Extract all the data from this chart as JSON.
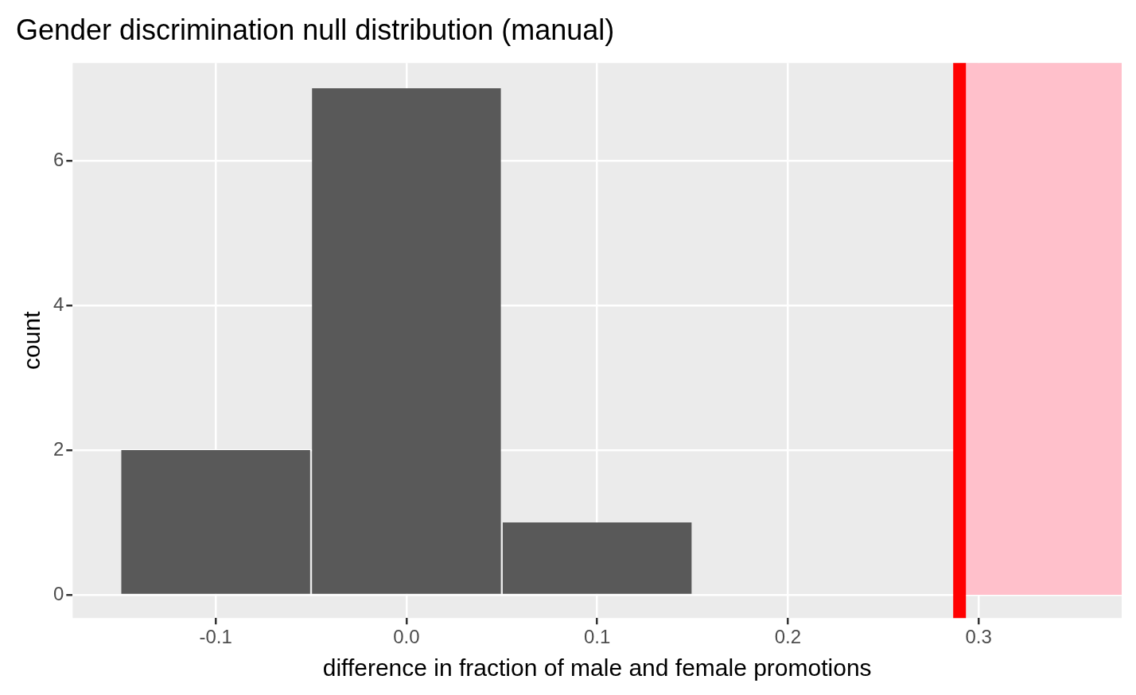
{
  "chart_data": {
    "type": "histogram",
    "title": "Gender discrimination null distribution (manual)",
    "xlabel": "difference in fraction of male and female promotions",
    "ylabel": "count",
    "bins": [
      -0.15,
      -0.05,
      0.05,
      0.15
    ],
    "values": [
      2,
      7,
      1
    ],
    "color": "#595959",
    "xlim": [
      -0.175,
      0.375
    ],
    "xticks": [
      {
        "value": -0.1,
        "label": "-0.1"
      },
      {
        "value": 0.0,
        "label": "0.0"
      },
      {
        "value": 0.1,
        "label": "0.1"
      },
      {
        "value": 0.2,
        "label": "0.2"
      },
      {
        "value": 0.3,
        "label": "0.3"
      }
    ],
    "ylim": [
      -0.32,
      7.35
    ],
    "yticks": [
      0,
      2,
      4,
      6
    ],
    "grid": true,
    "ref_lines": [
      {
        "axis": "x",
        "value": 0.29,
        "color": "#ff0000"
      }
    ],
    "bands": [
      {
        "axis": "x",
        "from": 0.29,
        "to": 0.375,
        "color": "#ffc0cb"
      }
    ]
  }
}
